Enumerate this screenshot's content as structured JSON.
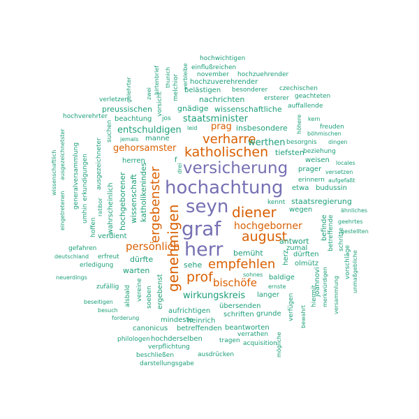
{
  "wordcloud": {
    "colors": {
      "small": "#1b9e77",
      "medium": "#d95f02",
      "large": "#7570b3"
    },
    "words": [
      {
        "text": "hochachtung"
      },
      {
        "text": "versicherung"
      },
      {
        "text": "seyn"
      },
      {
        "text": "graf"
      },
      {
        "text": "herr"
      },
      {
        "text": "genehmigen"
      },
      {
        "text": "ergebenster"
      },
      {
        "text": "katholischen"
      },
      {
        "text": "diener"
      },
      {
        "text": "august"
      },
      {
        "text": "verharre"
      },
      {
        "text": "empfehlen"
      },
      {
        "text": "prof"
      },
      {
        "text": "hochgeborner"
      },
      {
        "text": "persönlich"
      },
      {
        "text": "bischöfe"
      },
      {
        "text": "gehorsamster"
      },
      {
        "text": "prag"
      },
      {
        "text": "entschuldigen"
      },
      {
        "text": "staatsminister"
      },
      {
        "text": "werthen"
      },
      {
        "text": "wirkungskreis"
      },
      {
        "text": "insbesondere"
      },
      {
        "text": "nachrichten"
      },
      {
        "text": "gnädige"
      },
      {
        "text": "wissenschaftliche"
      },
      {
        "text": "preussischen"
      },
      {
        "text": "beachtung"
      },
      {
        "text": "hochwichtigen"
      },
      {
        "text": "einflußreichen"
      },
      {
        "text": "november"
      },
      {
        "text": "hochzuehrender"
      },
      {
        "text": "hochzuverehrender"
      },
      {
        "text": "belästigen"
      },
      {
        "text": "besonderer"
      },
      {
        "text": "czechischen"
      },
      {
        "text": "ersterer"
      },
      {
        "text": "geachteten"
      },
      {
        "text": "auffallende"
      },
      {
        "text": "verletzen"
      },
      {
        "text": "hochverehrter"
      },
      {
        "text": "jos"
      },
      {
        "text": "leid"
      },
      {
        "text": "kern"
      },
      {
        "text": "freuden"
      },
      {
        "text": "böhmischen"
      },
      {
        "text": "jemals"
      },
      {
        "text": "manne"
      },
      {
        "text": "besorgnis"
      },
      {
        "text": "dingen"
      },
      {
        "text": "tiefsten"
      },
      {
        "text": "beziehung"
      },
      {
        "text": "herren"
      },
      {
        "text": "f"
      },
      {
        "text": "weisen"
      },
      {
        "text": "locales"
      },
      {
        "text": "prager"
      },
      {
        "text": "versetzen"
      },
      {
        "text": "erinnern"
      },
      {
        "text": "aufgefaßt"
      },
      {
        "text": "etwa"
      },
      {
        "text": "budussin"
      },
      {
        "text": "staatsregierung"
      },
      {
        "text": "ähnliches"
      },
      {
        "text": "wegen"
      },
      {
        "text": "geehrtes"
      },
      {
        "text": "kennt"
      },
      {
        "text": "gestellten"
      },
      {
        "text": "antwort"
      },
      {
        "text": "bemüht"
      },
      {
        "text": "zumal"
      },
      {
        "text": "dürften"
      },
      {
        "text": "verdient"
      },
      {
        "text": "gefahren"
      },
      {
        "text": "deutschland"
      },
      {
        "text": "erfreut"
      },
      {
        "text": "erledigung"
      },
      {
        "text": "olmütz"
      },
      {
        "text": "dürfte"
      },
      {
        "text": "sehe"
      },
      {
        "text": "warten"
      },
      {
        "text": "sohnes"
      },
      {
        "text": "neuerdings"
      },
      {
        "text": "zufällig"
      },
      {
        "text": "baldige"
      },
      {
        "text": "langer"
      },
      {
        "text": "ernste"
      },
      {
        "text": "übersenden"
      },
      {
        "text": "schriften"
      },
      {
        "text": "aufrichtigen"
      },
      {
        "text": "mindeste"
      },
      {
        "text": "heinrich"
      },
      {
        "text": "beseitigen"
      },
      {
        "text": "besuch"
      },
      {
        "text": "forderung"
      },
      {
        "text": "canonicus"
      },
      {
        "text": "betreffenden"
      },
      {
        "text": "beantworten"
      },
      {
        "text": "grunde"
      },
      {
        "text": "verrathen"
      },
      {
        "text": "philologen"
      },
      {
        "text": "hochderselben"
      },
      {
        "text": "tragen"
      },
      {
        "text": "acquisition"
      },
      {
        "text": "verpflichtung"
      },
      {
        "text": "beschließen"
      },
      {
        "text": "ausdrücken"
      },
      {
        "text": "darstellungsgabe"
      },
      {
        "text": "hirtenbrief"
      },
      {
        "text": "thunich"
      },
      {
        "text": "verbleibe"
      },
      {
        "text": "melchior"
      },
      {
        "text": "zwei"
      },
      {
        "text": "gelehrter"
      },
      {
        "text": "vorsicht"
      },
      {
        "text": "suchen"
      },
      {
        "text": "wissenschaftlich"
      },
      {
        "text": "eingetretenen"
      },
      {
        "text": "ausgezeichnetster"
      },
      {
        "text": "generalversammlung"
      },
      {
        "text": "erkundigungen"
      },
      {
        "text": "umhin"
      },
      {
        "text": "hoffen"
      },
      {
        "text": "ratibor"
      },
      {
        "text": "ausgezeichneter"
      },
      {
        "text": "wahrscheinlich"
      },
      {
        "text": "hochgeborener"
      },
      {
        "text": "wissenschaft"
      },
      {
        "text": "katholiken"
      },
      {
        "text": "indes"
      },
      {
        "text": "drei"
      },
      {
        "text": "ergebenst"
      },
      {
        "text": "soeben"
      },
      {
        "text": "vereine"
      },
      {
        "text": "alsbald"
      },
      {
        "text": "herz"
      },
      {
        "text": "höhere"
      },
      {
        "text": "befinde"
      },
      {
        "text": "betreffende"
      },
      {
        "text": "schritte"
      },
      {
        "text": "vorschläge"
      },
      {
        "text": "unmaßgebliche"
      },
      {
        "text": "joannovi"
      },
      {
        "text": "bewahrt"
      },
      {
        "text": "hiermit"
      },
      {
        "text": "merkwürdigen"
      },
      {
        "text": "versammlung"
      },
      {
        "text": "verfügen"
      },
      {
        "text": "mögliche"
      }
    ]
  }
}
